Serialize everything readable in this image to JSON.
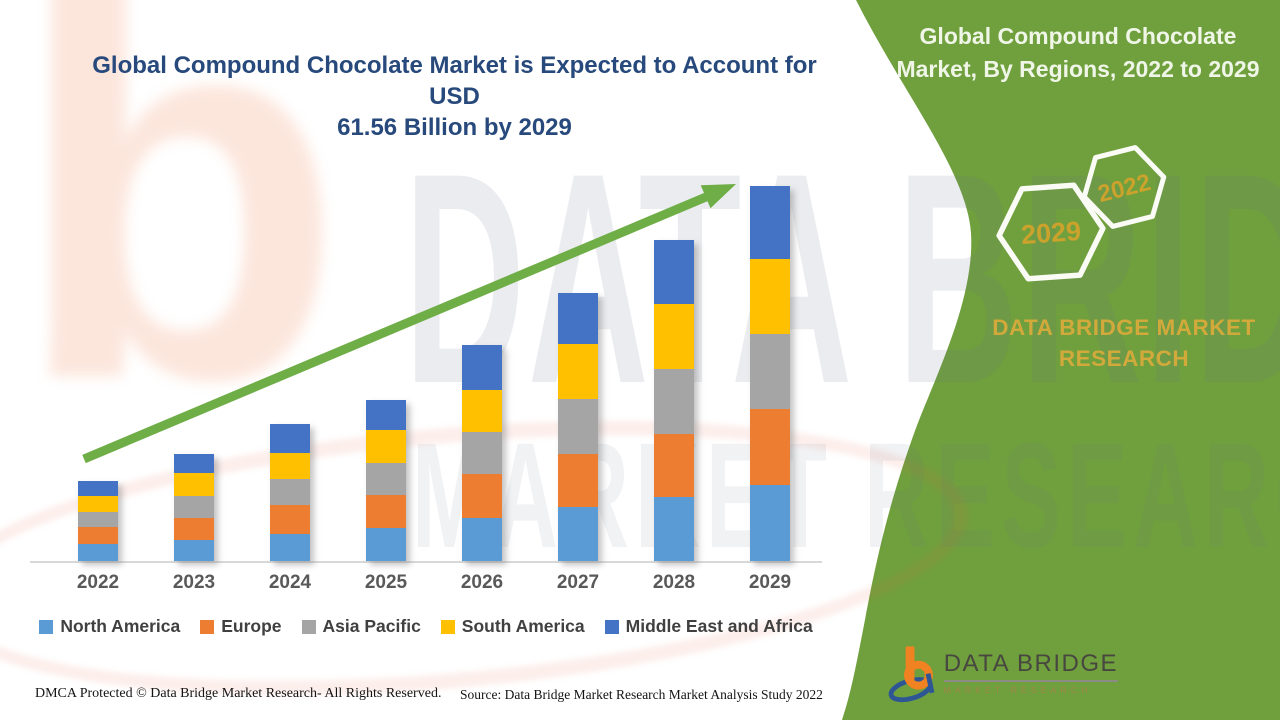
{
  "title": {
    "line1": "Global Compound Chocolate Market is Expected to Account for USD",
    "line2": "61.56 Billion by 2029",
    "color": "#27497B"
  },
  "panel": {
    "background_color": "#70A03D",
    "heading_line1": "Global Compound Chocolate",
    "heading_line2": "Market, By Regions, 2022 to 2029",
    "hexagons": [
      {
        "label": "2029"
      },
      {
        "label": "2022"
      }
    ],
    "hexagon_label_color": "#CBA22B",
    "brand": "DATA BRIDGE MARKET RESEARCH",
    "brand_color": "#D2A93B"
  },
  "chart_data": {
    "type": "bar",
    "stacked": true,
    "title": "Global Compound Chocolate Market, By Regions, 2022 to 2029",
    "unit": "USD Billion",
    "categories": [
      "2022",
      "2023",
      "2024",
      "2025",
      "2026",
      "2027",
      "2028",
      "2029"
    ],
    "series": [
      {
        "name": "North America",
        "color": "#5B9BD5",
        "values": [
          2.8,
          3.4,
          4.4,
          5.4,
          7.1,
          8.9,
          10.5,
          12.5
        ]
      },
      {
        "name": "Europe",
        "color": "#ED7D31",
        "values": [
          2.8,
          3.6,
          4.8,
          5.4,
          7.1,
          8.7,
          10.3,
          12.4
        ]
      },
      {
        "name": "Asia Pacific",
        "color": "#A5A5A5",
        "values": [
          2.5,
          3.6,
          4.3,
          5.3,
          6.9,
          9.0,
          10.7,
          12.3
        ]
      },
      {
        "name": "South America",
        "color": "#FFC000",
        "values": [
          2.5,
          3.8,
          4.3,
          5.4,
          6.9,
          8.9,
          10.7,
          12.3
        ]
      },
      {
        "name": "Middle East and Africa",
        "color": "#4472C4",
        "values": [
          2.5,
          3.1,
          4.6,
          4.9,
          7.4,
          8.5,
          10.5,
          12.06
        ]
      }
    ],
    "stack_totals": [
      13.1,
      17.5,
      22.4,
      26.4,
      35.4,
      44.0,
      52.7,
      61.56
    ],
    "highlight_total_2029": 61.56,
    "legend_position": "bottom",
    "y_axis_visible": false,
    "x_axis_visible": true,
    "trend_arrow": {
      "color": "#6FAE47",
      "direction": "up-right"
    }
  },
  "footer": {
    "dmca": "DMCA Protected © Data Bridge Market Research- All Rights Reserved.",
    "source": "Source: Data Bridge Market Research Market Analysis Study 2022"
  },
  "logo": {
    "name": "DATA BRIDGE",
    "tagline": "MARKET RESEARCH",
    "monogram_b_color": "#F08222",
    "monogram_d_color": "#2E5695"
  },
  "watermark": {
    "line1": "DATA BRIDGE",
    "line2": "MARKET RESEARCH",
    "monogram": "b"
  }
}
